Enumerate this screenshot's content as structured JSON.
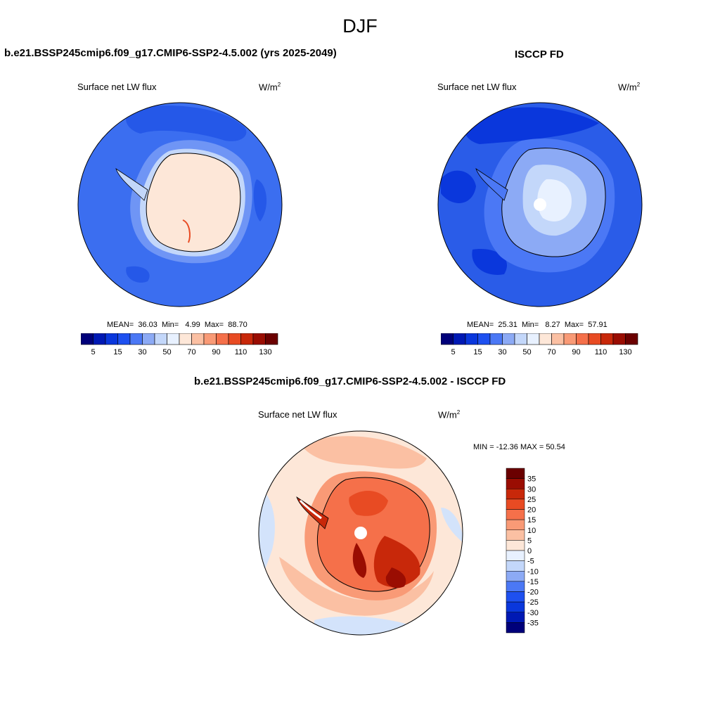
{
  "page": {
    "title": "DJF"
  },
  "colors": {
    "blue_scale": [
      "#00007a",
      "#0019b4",
      "#0a37dc",
      "#1e50f0",
      "#4b78f5",
      "#8caaf5",
      "#c3d7fa",
      "#e8f1ff",
      "#fde7d8",
      "#fbc0a3",
      "#f99a76",
      "#f5704a",
      "#e84b23",
      "#c8280a",
      "#9a0d02",
      "#6b0000"
    ],
    "diff_scale": [
      "#00007a",
      "#0019b4",
      "#0a37dc",
      "#1e50f0",
      "#4b78f5",
      "#8caaf5",
      "#c3d7fa",
      "#e8f1ff",
      "#fde7d8",
      "#fbc0a3",
      "#f99a76",
      "#f5704a",
      "#e84b23",
      "#c8280a",
      "#9a0d02",
      "#6b0000"
    ]
  },
  "chart_data": [
    {
      "type": "heatmap",
      "projection": "south-polar-stereographic",
      "title": "b.e21.BSSP245cmip6.f09_g17.CMIP6-SSP2-4.5.002 (yrs 2025-2049)",
      "variable": "Surface net LW flux",
      "units": "W/m",
      "units_exp": "2",
      "stats": {
        "mean_label": "MEAN=",
        "mean": "36.03",
        "min_label": "Min=",
        "min": "4.99",
        "max_label": "Max=",
        "max": "88.70"
      },
      "colorbar": {
        "orientation": "horizontal",
        "ticks": [
          "5",
          "15",
          "30",
          "50",
          "70",
          "90",
          "110",
          "130"
        ]
      }
    },
    {
      "type": "heatmap",
      "projection": "south-polar-stereographic",
      "title": "ISCCP FD",
      "variable": "Surface net LW flux",
      "units": "W/m",
      "units_exp": "2",
      "stats": {
        "mean_label": "MEAN=",
        "mean": "25.31",
        "min_label": "Min=",
        "min": "8.27",
        "max_label": "Max=",
        "max": "57.91"
      },
      "colorbar": {
        "orientation": "horizontal",
        "ticks": [
          "5",
          "15",
          "30",
          "50",
          "70",
          "90",
          "110",
          "130"
        ]
      }
    },
    {
      "type": "heatmap",
      "projection": "south-polar-stereographic",
      "title": "b.e21.BSSP245cmip6.f09_g17.CMIP6-SSP2-4.5.002 - ISCCP FD",
      "variable": "Surface net LW flux",
      "units": "W/m",
      "units_exp": "2",
      "stats": {
        "text": "MIN = -12.36 MAX =  50.54"
      },
      "colorbar": {
        "orientation": "vertical",
        "ticks": [
          "35",
          "30",
          "25",
          "20",
          "15",
          "10",
          "5",
          "0",
          "-5",
          "-10",
          "-15",
          "-20",
          "-25",
          "-30",
          "-35"
        ]
      }
    }
  ]
}
